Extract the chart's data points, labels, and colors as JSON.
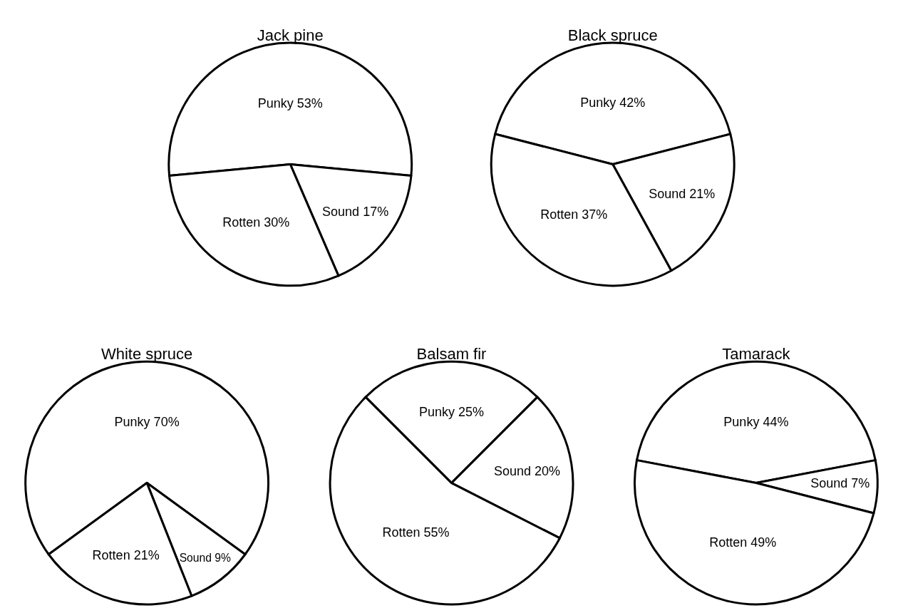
{
  "chart_data": [
    {
      "type": "pie",
      "title": "Jack pine",
      "categories": [
        "Punky",
        "Sound",
        "Rotten"
      ],
      "values": [
        53,
        17,
        30
      ],
      "colors": [
        "#ffffff",
        "#ffffff",
        "#ffffff"
      ],
      "value_labels": [
        "53%",
        "17%",
        "30%"
      ],
      "legend": false
    },
    {
      "type": "pie",
      "title": "Black spruce",
      "categories": [
        "Punky",
        "Sound",
        "Rotten"
      ],
      "values": [
        42,
        21,
        37
      ],
      "colors": [
        "#ffffff",
        "#ffffff",
        "#ffffff"
      ],
      "value_labels": [
        "42%",
        "21%",
        "37%"
      ],
      "legend": false
    },
    {
      "type": "pie",
      "title": "White spruce",
      "categories": [
        "Punky",
        "Sound",
        "Rotten"
      ],
      "values": [
        70,
        9,
        21
      ],
      "colors": [
        "#ffffff",
        "#ffffff",
        "#ffffff"
      ],
      "value_labels": [
        "70%",
        "9%",
        "21%"
      ],
      "legend": false
    },
    {
      "type": "pie",
      "title": "Balsam fir",
      "categories": [
        "Punky",
        "Sound",
        "Rotten"
      ],
      "values": [
        25,
        20,
        55
      ],
      "colors": [
        "#ffffff",
        "#ffffff",
        "#ffffff"
      ],
      "value_labels": [
        "25%",
        "20%",
        "55%"
      ],
      "legend": false
    },
    {
      "type": "pie",
      "title": "Tamarack",
      "categories": [
        "Punky",
        "Sound",
        "Rotten"
      ],
      "values": [
        44,
        7,
        49
      ],
      "colors": [
        "#ffffff",
        "#ffffff",
        "#ffffff"
      ],
      "value_labels": [
        "44%",
        "7%",
        "49%"
      ],
      "legend": false
    }
  ]
}
